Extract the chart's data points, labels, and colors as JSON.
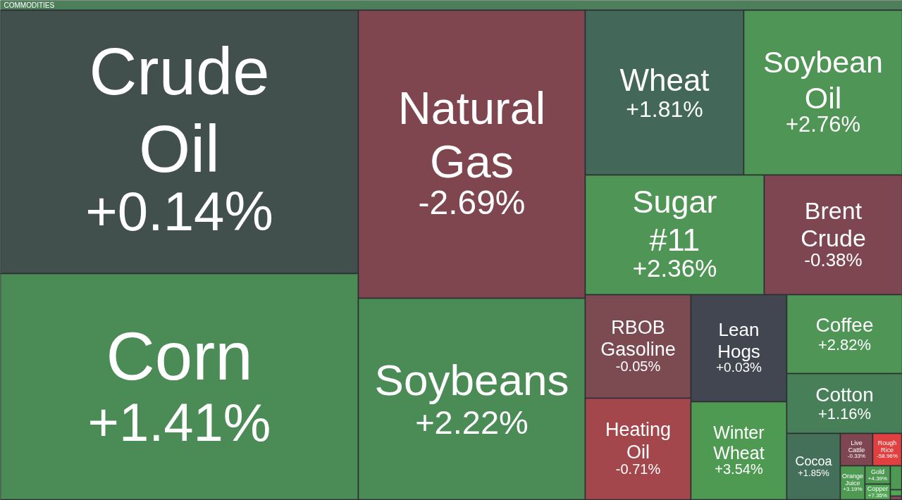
{
  "chart_data": {
    "type": "other",
    "title": "COMMODITIES",
    "categories": [
      "Crude Oil",
      "Corn",
      "Natural Gas",
      "Soybeans",
      "Wheat",
      "Soybean Oil",
      "Sugar #11",
      "Brent Crude",
      "RBOB Gasoline",
      "Lean Hogs",
      "Heating Oil",
      "Winter Wheat",
      "Coffee",
      "Cotton",
      "Cocoa",
      "Live Cattle",
      "Rough Rice",
      "Orange Juice",
      "Gold",
      "Copper",
      null,
      null,
      null
    ],
    "values": [
      0.14,
      1.41,
      -2.69,
      2.22,
      1.81,
      2.76,
      2.36,
      -0.38,
      -0.05,
      0.03,
      -0.71,
      3.54,
      2.82,
      1.16,
      1.85,
      -0.33,
      -58.96,
      3.19,
      4.39,
      7.35,
      null,
      null,
      null
    ],
    "value_labels": [
      "+0.14%",
      "+1.41%",
      "-2.69%",
      "+2.22%",
      "+1.81%",
      "+2.76%",
      "+2.36%",
      "-0.38%",
      "-0.05%",
      "+0.03%",
      "-0.71%",
      "+3.54%",
      "+2.82%",
      "+1.16%",
      "+1.85%",
      "-0.33%",
      "-58.96%",
      "+3.19%",
      "+4.39%",
      "+7.35%",
      null,
      null,
      null
    ],
    "colors": [
      "#414f4d",
      "#4b8b56",
      "#804650",
      "#4b8b56",
      "#43685a",
      "#4f9556",
      "#4f9556",
      "#7e4650",
      "#7c4a51",
      "#414650",
      "#a3474c",
      "#4f9a53",
      "#4f9556",
      "#477f58",
      "#44705a",
      "#7e4650",
      "#e0403f",
      "#4f9a53",
      "#4f9a53",
      "#52a656",
      "#4f9a53",
      "#52a656",
      "#8a4a55"
    ]
  }
}
